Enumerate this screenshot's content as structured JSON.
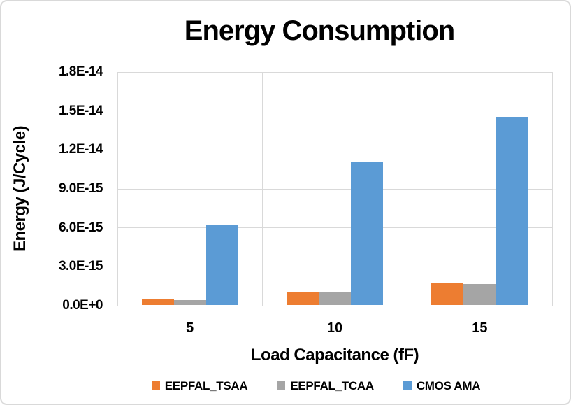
{
  "window": {
    "background_color": "#FFFFFF",
    "border_color": "#D9D9D9"
  },
  "chart_data": {
    "type": "bar",
    "title": "Energy Consumption",
    "xlabel": "Load Capacitance (fF)",
    "ylabel": "Energy (J/Cycle)",
    "categories": [
      "5",
      "10",
      "15"
    ],
    "series": [
      {
        "name": "EEPFAL_TSAA",
        "color": "#ED7D31",
        "values": [
          4.4e-16,
          1e-15,
          1.7e-15
        ]
      },
      {
        "name": "EEPFAL_TCAA",
        "color": "#A5A5A5",
        "values": [
          4e-16,
          9.5e-16,
          1.6e-15
        ]
      },
      {
        "name": "CMOS AMA",
        "color": "#5B9BD5",
        "values": [
          6.15e-15,
          1.1e-14,
          1.45e-14
        ]
      }
    ],
    "ylim": [
      0,
      1.8e-14
    ],
    "ytick_labels": [
      "0.0E+0",
      "3.0E-15",
      "6.0E-15",
      "9.0E-15",
      "1.2E-14",
      "1.5E-14",
      "1.8E-14"
    ],
    "grid": true,
    "legend_position": "bottom",
    "colors": {
      "gridline": "#D9D9D9",
      "axis_line": "#BFBFBF",
      "text": "#000000"
    }
  }
}
